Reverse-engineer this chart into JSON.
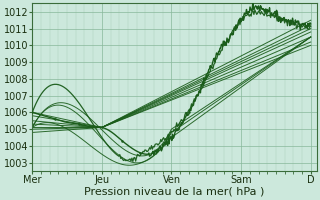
{
  "background_color": "#cce8dc",
  "plot_bg_color": "#cce8dc",
  "grid_color_minor": "#aaccb8",
  "grid_color_major": "#88b89a",
  "line_color": "#1a5c1a",
  "ylim": [
    1002.5,
    1012.5
  ],
  "yticks": [
    1003,
    1004,
    1005,
    1006,
    1007,
    1008,
    1009,
    1010,
    1011,
    1012
  ],
  "xlabel": "Pression niveau de la mer( hPa )",
  "xlabel_fontsize": 8,
  "tick_fontsize": 7,
  "day_labels": [
    "Mer",
    "Jeu",
    "Ven",
    "Sam",
    "D"
  ],
  "day_positions": [
    0,
    48,
    96,
    144,
    192
  ],
  "xlim": [
    0,
    196
  ]
}
